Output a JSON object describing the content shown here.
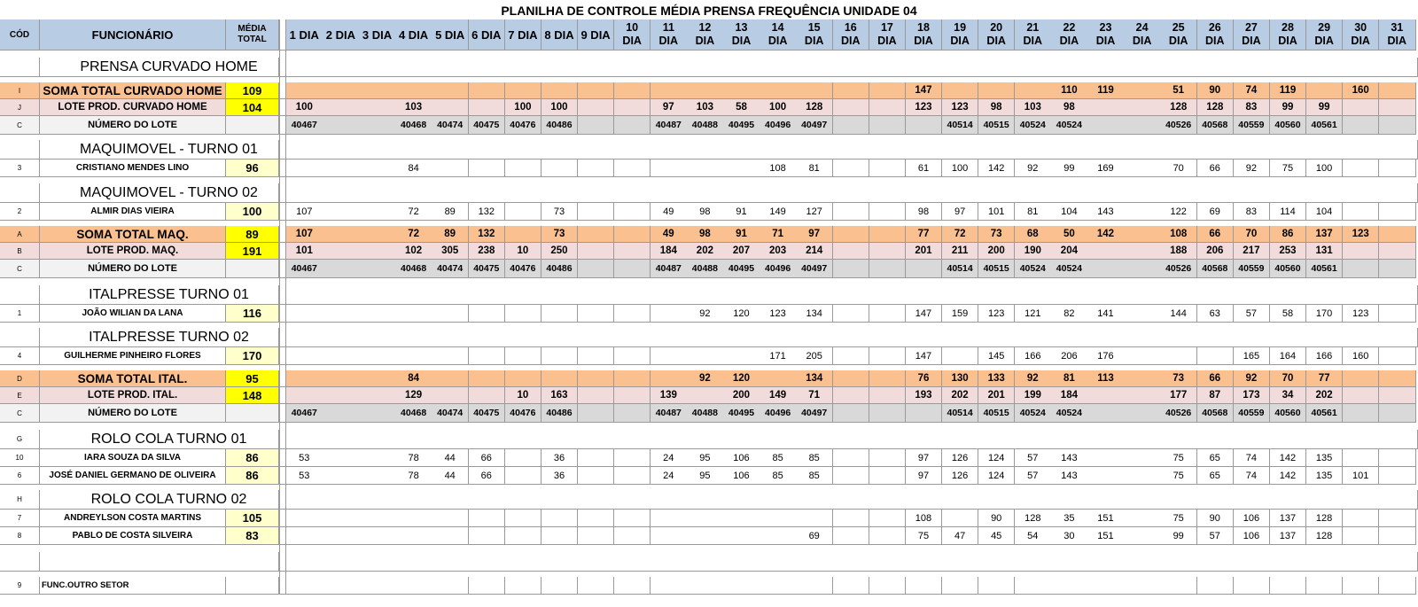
{
  "title": "PLANILHA DE CONTROLE MÉDIA PRENSA FREQUÊNCIA UNIDADE  04",
  "header": {
    "cod": "CÓD",
    "funcionario": "FUNCIONÁRIO",
    "media_line1": "MÉDIA",
    "media_line2": "TOTAL",
    "days": [
      "1 DIA",
      "2 DIA",
      "3 DIA",
      "4 DIA",
      "5 DIA",
      "6 DIA",
      "7 DIA",
      "8 DIA",
      "9 DIA",
      "10|DIA",
      "11|DIA",
      "12|DIA",
      "13|DIA",
      "14|DIA",
      "15|DIA",
      "16|DIA",
      "17|DIA",
      "18|DIA",
      "19|DIA",
      "20|DIA",
      "21|DIA",
      "22|DIA",
      "23|DIA",
      "24|DIA",
      "25|DIA",
      "26|DIA",
      "27|DIA",
      "28|DIA",
      "29|DIA",
      "30|DIA",
      "31|DIA"
    ]
  },
  "rows": [
    {
      "type": "spacer"
    },
    {
      "type": "section",
      "label": "PRENSA CURVADO HOME",
      "code": ""
    },
    {
      "type": "spacer"
    },
    {
      "type": "soma",
      "code": "I",
      "name": "SOMA TOTAL CURVADO HOME",
      "avg": "109",
      "days": [
        "",
        "",
        "",
        "",
        "",
        "",
        "",
        "",
        "",
        "",
        "",
        "",
        "",
        "",
        "",
        "",
        "",
        "147",
        "",
        "",
        "",
        "110",
        "119",
        "",
        "51",
        "90",
        "74",
        "119",
        "",
        "160",
        ""
      ]
    },
    {
      "type": "lote",
      "code": "J",
      "name": "LOTE PROD. CURVADO HOME",
      "avg": "104",
      "days": [
        "100",
        "",
        "",
        "103",
        "",
        "",
        "100",
        "100",
        "",
        "",
        "97",
        "103",
        "58",
        "100",
        "128",
        "",
        "",
        "123",
        "123",
        "98",
        "103",
        "98",
        "",
        "",
        "128",
        "128",
        "83",
        "99",
        "99",
        "",
        ""
      ]
    },
    {
      "type": "num",
      "code": "C",
      "name": "NÚMERO DO LOTE",
      "avg": "",
      "days": [
        "40467",
        "",
        "",
        "40468",
        "40474",
        "40475",
        "40476",
        "40486",
        "",
        "",
        "40487",
        "40488",
        "40495",
        "40496",
        "40497",
        "",
        "",
        "",
        "40514",
        "40515",
        "40524",
        "40524",
        "",
        "",
        "40526",
        "40568",
        "40559",
        "40560",
        "40561",
        "",
        ""
      ]
    },
    {
      "type": "spacer"
    },
    {
      "type": "section",
      "label": "MAQUIMOVEL - TURNO 01",
      "code": ""
    },
    {
      "type": "emp",
      "code": "3",
      "name": "CRISTIANO MENDES LINO",
      "avg": "96",
      "days": [
        "",
        "",
        "",
        "84",
        "",
        "",
        "",
        "",
        "",
        "",
        "",
        "",
        "",
        "108",
        "81",
        "",
        "",
        "61",
        "100",
        "142",
        "92",
        "99",
        "169",
        "",
        "70",
        "66",
        "92",
        "75",
        "100",
        "",
        ""
      ]
    },
    {
      "type": "spacer"
    },
    {
      "type": "section",
      "label": "MAQUIMOVEL - TURNO 02",
      "code": ""
    },
    {
      "type": "emp",
      "code": "2",
      "name": "ALMIR DIAS VIEIRA",
      "avg": "100",
      "days": [
        "107",
        "",
        "",
        "72",
        "89",
        "132",
        "",
        "73",
        "",
        "",
        "49",
        "98",
        "91",
        "149",
        "127",
        "",
        "",
        "98",
        "97",
        "101",
        "81",
        "104",
        "143",
        "",
        "122",
        "69",
        "83",
        "114",
        "104",
        "",
        ""
      ]
    },
    {
      "type": "spacer"
    },
    {
      "type": "soma",
      "code": "A",
      "name": "SOMA TOTAL MAQ.",
      "avg": "89",
      "days": [
        "107",
        "",
        "",
        "72",
        "89",
        "132",
        "",
        "73",
        "",
        "",
        "49",
        "98",
        "91",
        "71",
        "97",
        "",
        "",
        "77",
        "72",
        "73",
        "68",
        "50",
        "142",
        "",
        "108",
        "66",
        "70",
        "86",
        "137",
        "123",
        ""
      ]
    },
    {
      "type": "lote",
      "code": "B",
      "name": "LOTE PROD. MAQ.",
      "avg": "191",
      "days": [
        "101",
        "",
        "",
        "102",
        "305",
        "238",
        "10",
        "250",
        "",
        "",
        "184",
        "202",
        "207",
        "203",
        "214",
        "",
        "",
        "201",
        "211",
        "200",
        "190",
        "204",
        "",
        "",
        "188",
        "206",
        "217",
        "253",
        "131",
        "",
        ""
      ]
    },
    {
      "type": "num",
      "code": "C",
      "name": "NÚMERO DO LOTE",
      "avg": "",
      "days": [
        "40467",
        "",
        "",
        "40468",
        "40474",
        "40475",
        "40476",
        "40486",
        "",
        "",
        "40487",
        "40488",
        "40495",
        "40496",
        "40497",
        "",
        "",
        "",
        "40514",
        "40515",
        "40524",
        "40524",
        "",
        "",
        "40526",
        "40568",
        "40559",
        "40560",
        "40561",
        "",
        ""
      ]
    },
    {
      "type": "spacer"
    },
    {
      "type": "section",
      "label": "ITALPRESSE TURNO 01",
      "code": ""
    },
    {
      "type": "emp",
      "code": "1",
      "name": "JOÃO WILIAN DA LANA",
      "avg": "116",
      "days": [
        "",
        "",
        "",
        "",
        "",
        "",
        "",
        "",
        "",
        "",
        "",
        "92",
        "120",
        "123",
        "134",
        "",
        "",
        "147",
        "159",
        "123",
        "121",
        "82",
        "141",
        "",
        "144",
        "63",
        "57",
        "58",
        "170",
        "123",
        ""
      ]
    },
    {
      "type": "spacer"
    },
    {
      "type": "section",
      "label": "ITALPRESSE TURNO 02",
      "code": ""
    },
    {
      "type": "emp",
      "code": "4",
      "name": "GUILHERME PINHEIRO FLORES",
      "avg": "170",
      "days": [
        "",
        "",
        "",
        "",
        "",
        "",
        "",
        "",
        "",
        "",
        "",
        "",
        "",
        "171",
        "205",
        "",
        "",
        "147",
        "",
        "145",
        "166",
        "206",
        "176",
        "",
        "",
        "",
        "165",
        "164",
        "166",
        "160",
        ""
      ]
    },
    {
      "type": "spacer"
    },
    {
      "type": "soma",
      "code": "D",
      "name": "SOMA TOTAL ITAL.",
      "avg": "95",
      "days": [
        "",
        "",
        "",
        "84",
        "",
        "",
        "",
        "",
        "",
        "",
        "",
        "92",
        "120",
        "",
        "134",
        "",
        "",
        "76",
        "130",
        "133",
        "92",
        "81",
        "113",
        "",
        "73",
        "66",
        "92",
        "70",
        "77",
        "",
        ""
      ]
    },
    {
      "type": "lote",
      "code": "E",
      "name": "LOTE PROD. ITAL.",
      "avg": "148",
      "days": [
        "",
        "",
        "",
        "129",
        "",
        "",
        "10",
        "163",
        "",
        "",
        "139",
        "",
        "200",
        "149",
        "71",
        "",
        "",
        "193",
        "202",
        "201",
        "199",
        "184",
        "",
        "",
        "177",
        "87",
        "173",
        "34",
        "202",
        "",
        ""
      ]
    },
    {
      "type": "num",
      "code": "C",
      "name": "NÚMERO DO LOTE",
      "avg": "",
      "days": [
        "40467",
        "",
        "",
        "40468",
        "40474",
        "40475",
        "40476",
        "40486",
        "",
        "",
        "40487",
        "40488",
        "40495",
        "40496",
        "40497",
        "",
        "",
        "",
        "40514",
        "40515",
        "40524",
        "40524",
        "",
        "",
        "40526",
        "40568",
        "40559",
        "40560",
        "40561",
        "",
        ""
      ]
    },
    {
      "type": "spacer"
    },
    {
      "type": "section",
      "label": "ROLO COLA TURNO 01",
      "code": "G"
    },
    {
      "type": "emp",
      "code": "10",
      "name": "IARA SOUZA DA SILVA",
      "avg": "86",
      "days": [
        "53",
        "",
        "",
        "78",
        "44",
        "66",
        "",
        "36",
        "",
        "",
        "24",
        "95",
        "106",
        "85",
        "85",
        "",
        "",
        "97",
        "126",
        "124",
        "57",
        "143",
        "",
        "",
        "75",
        "65",
        "74",
        "142",
        "135",
        "",
        ""
      ]
    },
    {
      "type": "emp",
      "code": "6",
      "name": "JOSÉ DANIEL GERMANO DE OLIVEIRA",
      "avg": "86",
      "days": [
        "53",
        "",
        "",
        "78",
        "44",
        "66",
        "",
        "36",
        "",
        "",
        "24",
        "95",
        "106",
        "85",
        "85",
        "",
        "",
        "97",
        "126",
        "124",
        "57",
        "143",
        "",
        "",
        "75",
        "65",
        "74",
        "142",
        "135",
        "101",
        ""
      ]
    },
    {
      "type": "spacer"
    },
    {
      "type": "section",
      "label": "ROLO COLA TURNO 02",
      "code": "H"
    },
    {
      "type": "emp",
      "code": "7",
      "name": "ANDREYLSON COSTA MARTINS",
      "avg": "105",
      "days": [
        "",
        "",
        "",
        "",
        "",
        "",
        "",
        "",
        "",
        "",
        "",
        "",
        "",
        "",
        "",
        "",
        "",
        "108",
        "",
        "90",
        "128",
        "35",
        "151",
        "",
        "75",
        "90",
        "106",
        "137",
        "128",
        "",
        ""
      ]
    },
    {
      "type": "emp",
      "code": "8",
      "name": "PABLO DE COSTA SILVEIRA",
      "avg": "83",
      "days": [
        "",
        "",
        "",
        "",
        "",
        "",
        "",
        "",
        "",
        "",
        "",
        "",
        "",
        "",
        "69",
        "",
        "",
        "75",
        "47",
        "45",
        "54",
        "30",
        "151",
        "",
        "99",
        "57",
        "106",
        "137",
        "128",
        "",
        ""
      ]
    },
    {
      "type": "spacer"
    },
    {
      "type": "section",
      "label": "",
      "code": ""
    },
    {
      "type": "spacer"
    },
    {
      "type": "other",
      "code": "9",
      "name": "FUNC.OUTRO SETOR",
      "avg": "",
      "days": [
        "",
        "",
        "",
        "",
        "",
        "",
        "",
        "",
        "",
        "",
        "",
        "",
        "",
        "",
        "",
        "",
        "",
        "",
        "",
        "",
        "",
        "",
        "",
        "",
        "",
        "",
        "",
        "",
        "",
        "",
        ""
      ]
    }
  ]
}
